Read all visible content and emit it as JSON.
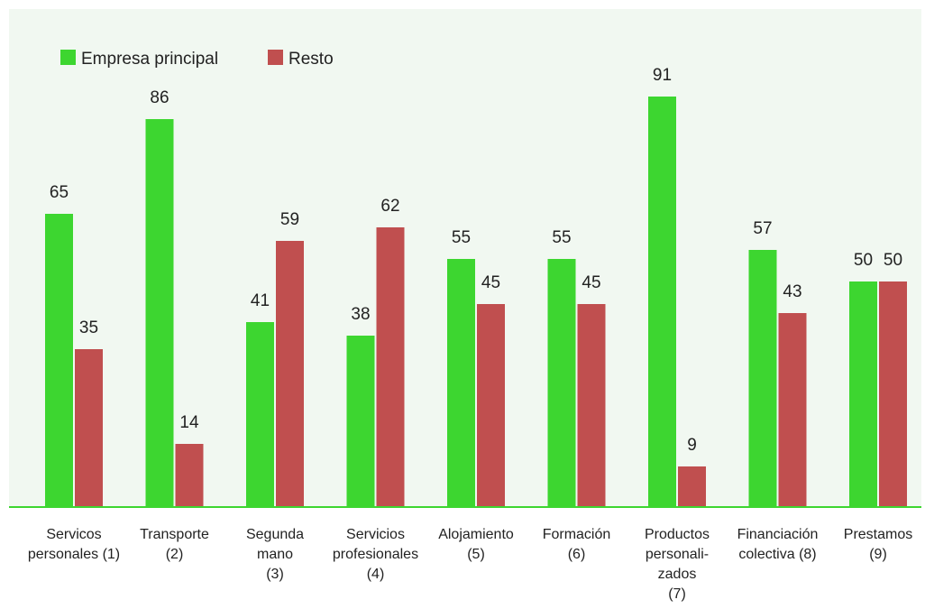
{
  "chart_data": {
    "type": "bar",
    "categories": [
      [
        "Servicos",
        "personales (1)"
      ],
      [
        "Transporte",
        "(2)"
      ],
      [
        "Segunda",
        "mano",
        "(3)"
      ],
      [
        "Servicios",
        "profesionales",
        "(4)"
      ],
      [
        "Alojamiento",
        "(5)"
      ],
      [
        "Formación",
        "(6)"
      ],
      [
        "Productos",
        "personali-",
        "zados",
        "(7)"
      ],
      [
        "Financiación",
        "colectiva (8)"
      ],
      [
        "Prestamos",
        "(9)"
      ]
    ],
    "series": [
      {
        "name": "Empresa principal",
        "color": "#3dd630",
        "values": [
          65,
          86,
          41,
          38,
          55,
          55,
          91,
          57,
          50
        ]
      },
      {
        "name": "Resto",
        "color": "#c04f4f",
        "values": [
          35,
          14,
          59,
          62,
          45,
          45,
          9,
          43,
          50
        ]
      }
    ],
    "ylim": [
      0,
      100
    ],
    "grid": false,
    "legend_position": "top-left",
    "plot_background": "#f1f8f1",
    "axis_color": "#3dd630",
    "data_labels": true
  }
}
